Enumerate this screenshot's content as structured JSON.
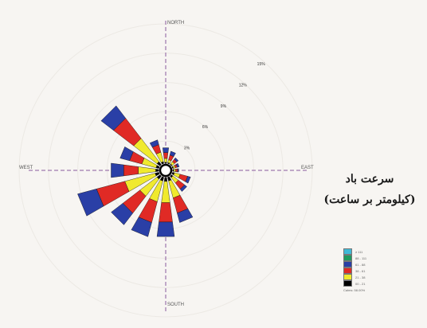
{
  "chart_data": {
    "type": "wind-rose",
    "axes": {
      "north": "NORTH",
      "south": "SOUTH",
      "west": "WEST",
      "east": "EAST"
    },
    "rings": [
      "3%",
      "6%",
      "9%",
      "12%",
      "15%"
    ],
    "legend_title": [
      "سرعت باد",
      "(کیلومتر بر ساعت)"
    ],
    "legend_footer": "Calms: 58.00%",
    "speed_classes": [
      {
        "label": "≥ 111",
        "color": "#3fb9d6"
      },
      {
        "label": "88 - 111",
        "color": "#1f9a5e"
      },
      {
        "label": "61 - 88",
        "color": "#2a3fa6"
      },
      {
        "label": "38 - 61",
        "color": "#e02a25"
      },
      {
        "label": "21 - 38",
        "color": "#f0ea2e"
      },
      {
        "label": "00 - 21",
        "color": "#000000"
      }
    ],
    "direction_order_deg": [
      0,
      22.5,
      45,
      67.5,
      90,
      112.5,
      135,
      157.5,
      180,
      202.5,
      225,
      247.5,
      270,
      292.5,
      315,
      337.5
    ],
    "sectors": [
      {
        "dir": 0,
        "values": [
          0,
          0,
          0.5,
          0.6,
          0.4,
          0.1
        ]
      },
      {
        "dir": 22.5,
        "values": [
          0,
          0,
          0.4,
          0.5,
          0.3,
          0.1
        ]
      },
      {
        "dir": 45,
        "values": [
          0,
          0,
          0.2,
          0.3,
          0.3,
          0.1
        ]
      },
      {
        "dir": 67.5,
        "values": [
          0,
          0,
          0.2,
          0.2,
          0.2,
          0.1
        ]
      },
      {
        "dir": 90,
        "values": [
          0,
          0,
          0.1,
          0.2,
          0.2,
          0.1
        ]
      },
      {
        "dir": 112.5,
        "values": [
          0,
          0,
          0.3,
          0.8,
          0.6,
          0.2
        ]
      },
      {
        "dir": 135,
        "values": [
          0,
          0,
          0.3,
          0.8,
          0.7,
          0.2
        ]
      },
      {
        "dir": 157.5,
        "values": [
          0,
          0,
          1.0,
          1.6,
          1.8,
          0.4
        ]
      },
      {
        "dir": 180,
        "values": [
          0,
          0,
          1.5,
          2.0,
          2.2,
          0.4
        ]
      },
      {
        "dir": 202.5,
        "values": [
          0,
          0,
          1.5,
          2.2,
          2.2,
          0.4
        ]
      },
      {
        "dir": 225,
        "values": [
          0,
          0,
          1.5,
          2.2,
          2.2,
          0.4
        ]
      },
      {
        "dir": 247.5,
        "values": [
          0,
          0,
          2.0,
          3.0,
          3.2,
          0.4
        ]
      },
      {
        "dir": 270,
        "values": [
          0,
          0,
          1.3,
          1.5,
          1.8,
          0.3
        ]
      },
      {
        "dir": 292.5,
        "values": [
          0,
          0,
          1.0,
          1.3,
          1.5,
          0.3
        ]
      },
      {
        "dir": 315,
        "values": [
          0,
          0,
          1.6,
          2.6,
          3.0,
          0.4
        ]
      },
      {
        "dir": 337.5,
        "values": [
          0,
          0,
          0.5,
          0.8,
          1.0,
          0.2
        ]
      }
    ],
    "rmax": 15,
    "grid": true,
    "legend_position": "right"
  }
}
